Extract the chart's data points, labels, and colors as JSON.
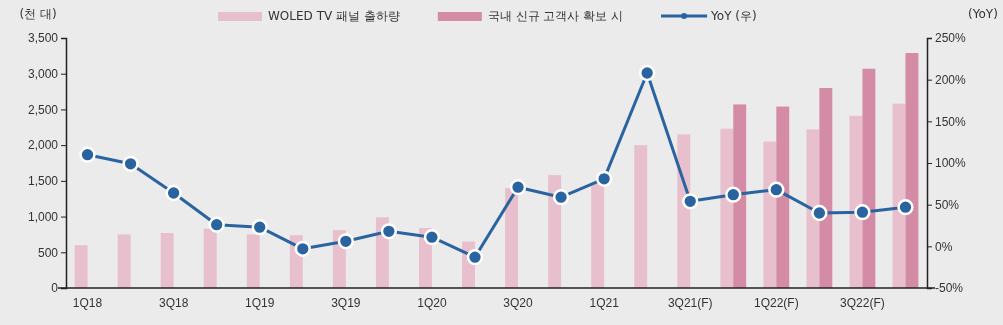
{
  "chart_data": {
    "type": "bar",
    "ylabel": "(천 대)",
    "y2label": "(YoY)",
    "categories": [
      "1Q18",
      null,
      "3Q18",
      null,
      "1Q19",
      null,
      "3Q19",
      null,
      "1Q20",
      null,
      "3Q20",
      null,
      "1Q21",
      null,
      "3Q21(F)",
      null,
      "1Q22(F)",
      null,
      "3Q22(F)",
      null
    ],
    "series": [
      {
        "name": "WOLED TV 패널 출하량",
        "color": "#e8bfcc",
        "values": [
          600,
          750,
          770,
          830,
          750,
          740,
          810,
          990,
          840,
          650,
          1400,
          1580,
          1480,
          2000,
          2150,
          2230,
          2050,
          2220,
          2410,
          2580
        ]
      },
      {
        "name": "국내 신규 고객사 확보 시",
        "color": "#d48ba5",
        "values": [
          null,
          null,
          null,
          null,
          null,
          null,
          null,
          null,
          null,
          null,
          null,
          null,
          null,
          null,
          null,
          2570,
          2540,
          2800,
          3070,
          3290
        ]
      },
      {
        "name": "YoY (우)",
        "type": "line",
        "axis": "y2",
        "color": "#2a64a0",
        "marker": "circle",
        "values": [
          110,
          99,
          64,
          26,
          23,
          -3,
          6,
          18,
          11,
          -13,
          71,
          59,
          81,
          208,
          54,
          62,
          68,
          40,
          41,
          47
        ]
      }
    ],
    "ylim": [
      0,
      3500
    ],
    "yticks": [
      {
        "value": 0,
        "label": "0"
      },
      {
        "value": 500,
        "label": "500"
      },
      {
        "value": 1000,
        "label": "1,000"
      },
      {
        "value": 1500,
        "label": "1,500"
      },
      {
        "value": 2000,
        "label": "2,000"
      },
      {
        "value": 2500,
        "label": "2,500"
      },
      {
        "value": 3000,
        "label": "3,000"
      },
      {
        "value": 3500,
        "label": "3,500"
      }
    ],
    "y2lim": [
      -50,
      250
    ],
    "y2ticks": [
      {
        "value": -50,
        "label": "-50%"
      },
      {
        "value": 0,
        "label": "0%"
      },
      {
        "value": 50,
        "label": "50%"
      },
      {
        "value": 100,
        "label": "100%"
      },
      {
        "value": 150,
        "label": "150%"
      },
      {
        "value": 200,
        "label": "200%"
      },
      {
        "value": 250,
        "label": "250%"
      }
    ],
    "legend": "top",
    "grid": false
  }
}
